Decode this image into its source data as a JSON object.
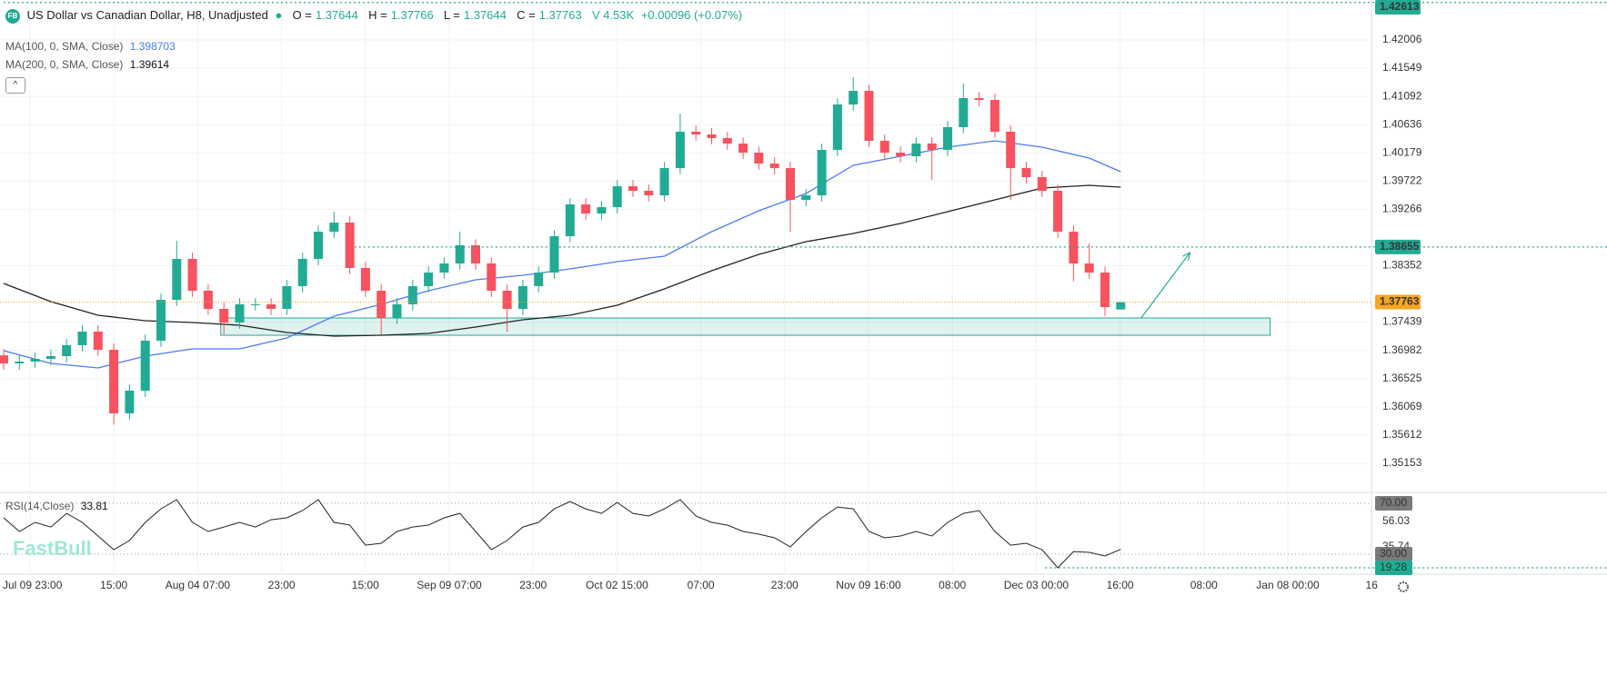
{
  "chart_data": {
    "type": "candlestick",
    "header": {
      "logo": "FB",
      "title": "US Dollar vs Canadian Dollar, H8, Unadjusted",
      "ohlc_labels": [
        "O =",
        "H =",
        "L =",
        "C ="
      ],
      "volume": "V 4.53K",
      "change": "+0.00096 (+0.07%)"
    },
    "candles": {
      "up_color": "#22ab94",
      "down_color": "#f7525f",
      "open": [
        1.369,
        1.36771,
        1.368,
        1.36844,
        1.36888,
        1.37065,
        1.37285,
        1.36991,
        1.35962,
        1.36329,
        1.37138,
        1.378,
        1.38462,
        1.37947,
        1.37653,
        1.37432,
        1.37727,
        1.37727,
        1.37653,
        1.38021,
        1.38462,
        1.38903,
        1.3905,
        1.38315,
        1.37947,
        1.37506,
        1.37727,
        1.38021,
        1.38241,
        1.38388,
        1.38682,
        1.38388,
        1.37947,
        1.37653,
        1.38021,
        1.38241,
        1.38829,
        1.39344,
        1.39197,
        1.393,
        1.39638,
        1.39565,
        1.39491,
        1.39932,
        1.40521,
        1.40477,
        1.40418,
        1.40329,
        1.40182,
        1.40006,
        1.39932,
        1.39418,
        1.39491,
        1.40227,
        1.40962,
        1.41182,
        1.40374,
        1.40182,
        1.40124,
        1.40329,
        1.40227,
        1.40594,
        1.41065,
        1.41035,
        1.40521,
        1.39932,
        1.39785,
        1.39565,
        1.38903,
        1.38388,
        1.38241,
        1.37644
      ],
      "high": [
        1.37,
        1.369,
        1.36944,
        1.36988,
        1.37165,
        1.37385,
        1.37385,
        1.37091,
        1.36429,
        1.37238,
        1.379,
        1.38756,
        1.38562,
        1.38047,
        1.37753,
        1.37827,
        1.37827,
        1.37827,
        1.38121,
        1.38562,
        1.39003,
        1.39229,
        1.3915,
        1.38415,
        1.38047,
        1.37827,
        1.38121,
        1.38341,
        1.38488,
        1.38903,
        1.38782,
        1.38488,
        1.38047,
        1.38121,
        1.38341,
        1.38929,
        1.39444,
        1.39444,
        1.394,
        1.39738,
        1.39738,
        1.39665,
        1.40032,
        1.40815,
        1.40621,
        1.40577,
        1.40518,
        1.40429,
        1.40282,
        1.40106,
        1.40032,
        1.39591,
        1.40327,
        1.41062,
        1.41403,
        1.41282,
        1.40474,
        1.40282,
        1.40429,
        1.40429,
        1.40694,
        1.413,
        1.41165,
        1.41135,
        1.40621,
        1.40032,
        1.39885,
        1.39665,
        1.39003,
        1.38712,
        1.38341,
        1.37766
      ],
      "low": [
        1.36671,
        1.36671,
        1.367,
        1.36744,
        1.36788,
        1.36965,
        1.36891,
        1.3578,
        1.35862,
        1.36229,
        1.37038,
        1.377,
        1.37847,
        1.37553,
        1.37241,
        1.37332,
        1.37627,
        1.37553,
        1.37553,
        1.37921,
        1.38362,
        1.38803,
        1.38215,
        1.37847,
        1.37241,
        1.37406,
        1.37627,
        1.37921,
        1.38141,
        1.38288,
        1.38288,
        1.37847,
        1.37285,
        1.37553,
        1.37921,
        1.38141,
        1.38729,
        1.39097,
        1.39097,
        1.392,
        1.39465,
        1.39391,
        1.39391,
        1.39832,
        1.40377,
        1.40318,
        1.40229,
        1.40082,
        1.39906,
        1.39832,
        1.38903,
        1.39318,
        1.39391,
        1.40127,
        1.40862,
        1.40274,
        1.40082,
        1.40024,
        1.40024,
        1.39741,
        1.40127,
        1.40494,
        1.40935,
        1.40421,
        1.39418,
        1.39685,
        1.39465,
        1.38803,
        1.381,
        1.38141,
        1.37535,
        1.37644
      ],
      "close": [
        1.36771,
        1.368,
        1.36844,
        1.36888,
        1.37065,
        1.37285,
        1.36991,
        1.35962,
        1.36329,
        1.37138,
        1.378,
        1.38462,
        1.37947,
        1.37653,
        1.37432,
        1.37727,
        1.37727,
        1.37653,
        1.38021,
        1.38462,
        1.38903,
        1.3905,
        1.38315,
        1.37947,
        1.37506,
        1.37727,
        1.38021,
        1.38241,
        1.38388,
        1.38682,
        1.38388,
        1.37947,
        1.37653,
        1.38021,
        1.38241,
        1.38829,
        1.39344,
        1.39197,
        1.393,
        1.39638,
        1.39565,
        1.39491,
        1.39932,
        1.40521,
        1.40477,
        1.40418,
        1.40329,
        1.40182,
        1.40006,
        1.39932,
        1.39418,
        1.39491,
        1.40227,
        1.40962,
        1.41182,
        1.40374,
        1.40182,
        1.40124,
        1.40329,
        1.40227,
        1.40594,
        1.41065,
        1.41035,
        1.40521,
        1.39932,
        1.39785,
        1.39565,
        1.38903,
        1.38388,
        1.38241,
        1.37682,
        1.37763
      ]
    },
    "ma": [
      {
        "name": "MA(100, 0, SMA, Close)",
        "legend_value": 1.398703,
        "color": "#4a7bf7",
        "x": [
          0,
          3,
          6,
          9,
          12,
          15,
          18,
          21,
          24,
          27,
          30,
          33,
          36,
          39,
          42,
          45,
          48,
          51,
          54,
          57,
          60,
          63,
          66,
          69,
          71
        ],
        "values": [
          1.36977,
          1.36771,
          1.36697,
          1.36888,
          1.37006,
          1.37006,
          1.37182,
          1.37535,
          1.37727,
          1.37947,
          1.38124,
          1.38197,
          1.383,
          1.38418,
          1.38506,
          1.38903,
          1.39241,
          1.39521,
          1.39977,
          1.40124,
          1.40271,
          1.40374,
          1.40271,
          1.40094,
          1.39874
        ]
      },
      {
        "name": "MA(200, 0, SMA, Close)",
        "legend_value": 1.39614,
        "color": "#222222",
        "x": [
          0,
          3,
          6,
          9,
          12,
          15,
          18,
          21,
          24,
          27,
          30,
          33,
          36,
          39,
          42,
          45,
          48,
          51,
          54,
          57,
          60,
          63,
          66,
          69,
          71
        ],
        "values": [
          1.38065,
          1.37771,
          1.3755,
          1.37462,
          1.37432,
          1.37388,
          1.37271,
          1.37212,
          1.37226,
          1.37256,
          1.37359,
          1.37477,
          1.3755,
          1.37712,
          1.37977,
          1.38271,
          1.38535,
          1.38741,
          1.38874,
          1.39035,
          1.39227,
          1.39418,
          1.39609,
          1.39653,
          1.39624
        ]
      }
    ],
    "ylim": [
      1.34697,
      1.42653
    ],
    "yticks": [
      1.42006,
      1.41549,
      1.41092,
      1.40636,
      1.40179,
      1.39722,
      1.39266,
      1.38352,
      1.37439,
      1.36982,
      1.36525,
      1.36069,
      1.35612,
      1.35153
    ],
    "grid": true,
    "price_lines": [
      {
        "value": 1.42613,
        "x_start": 0,
        "color": "#22ab94"
      },
      {
        "value": 1.38655,
        "x_start": 22.3,
        "color": "#22ab94"
      }
    ],
    "current_color": "#f5a623",
    "zone": {
      "x": [
        13.8,
        80.5
      ],
      "y": [
        1.37226,
        1.37506
      ],
      "color": "#22ab94"
    },
    "arrow": {
      "x": [
        72.3,
        75.4
      ],
      "y": [
        1.37506,
        1.38565
      ],
      "color": "#22ab94"
    },
    "x_labels": [
      "Jul 09 23:00",
      "15:00",
      "Aug 04 07:00",
      "23:00",
      "15:00",
      "Sep 09 07:00",
      "23:00",
      "Oct 02 15:00",
      "07:00",
      "23:00",
      "Nov 09 16:00",
      "08:00",
      "Dec 03 00:00",
      "16:00",
      "08:00",
      "Jan 08 00:00",
      "16"
    ],
    "rsi": {
      "name": "RSI(14,Close)",
      "color": "#222222",
      "values": [
        58.6,
        47.9,
        55,
        51.4,
        62.1,
        55,
        44.3,
        33.6,
        40.7,
        55,
        65.7,
        72.9,
        55,
        47.9,
        51.4,
        55,
        51.4,
        57.1,
        58.6,
        64.3,
        72.9,
        55,
        52.9,
        37.1,
        38.6,
        47.9,
        51.4,
        52.9,
        58.6,
        62.1,
        47.9,
        33.6,
        40.7,
        51.4,
        55,
        65.7,
        71.4,
        65.7,
        62.1,
        70.7,
        62.1,
        60,
        65.7,
        72.9,
        60,
        55,
        52.9,
        47.9,
        45.7,
        42.9,
        35.7,
        47.9,
        58.6,
        67.1,
        65.7,
        47.9,
        42.9,
        44.3,
        47.9,
        44.3,
        55,
        62.1,
        64.3,
        47.9,
        37.1,
        38.6,
        33.6,
        19.28,
        32.1,
        31.4,
        28.6,
        33.81
      ],
      "ylim": [
        15.7,
        77.9
      ],
      "yticks": [
        56.03,
        35.74
      ],
      "levels": [
        {
          "value": 70,
          "label": "70.00"
        },
        {
          "value": 30,
          "label": "30.00"
        }
      ],
      "min_marker": {
        "value": 19.28,
        "label": "19.28",
        "x_start": 66.2
      }
    },
    "watermark": "FastBull"
  }
}
